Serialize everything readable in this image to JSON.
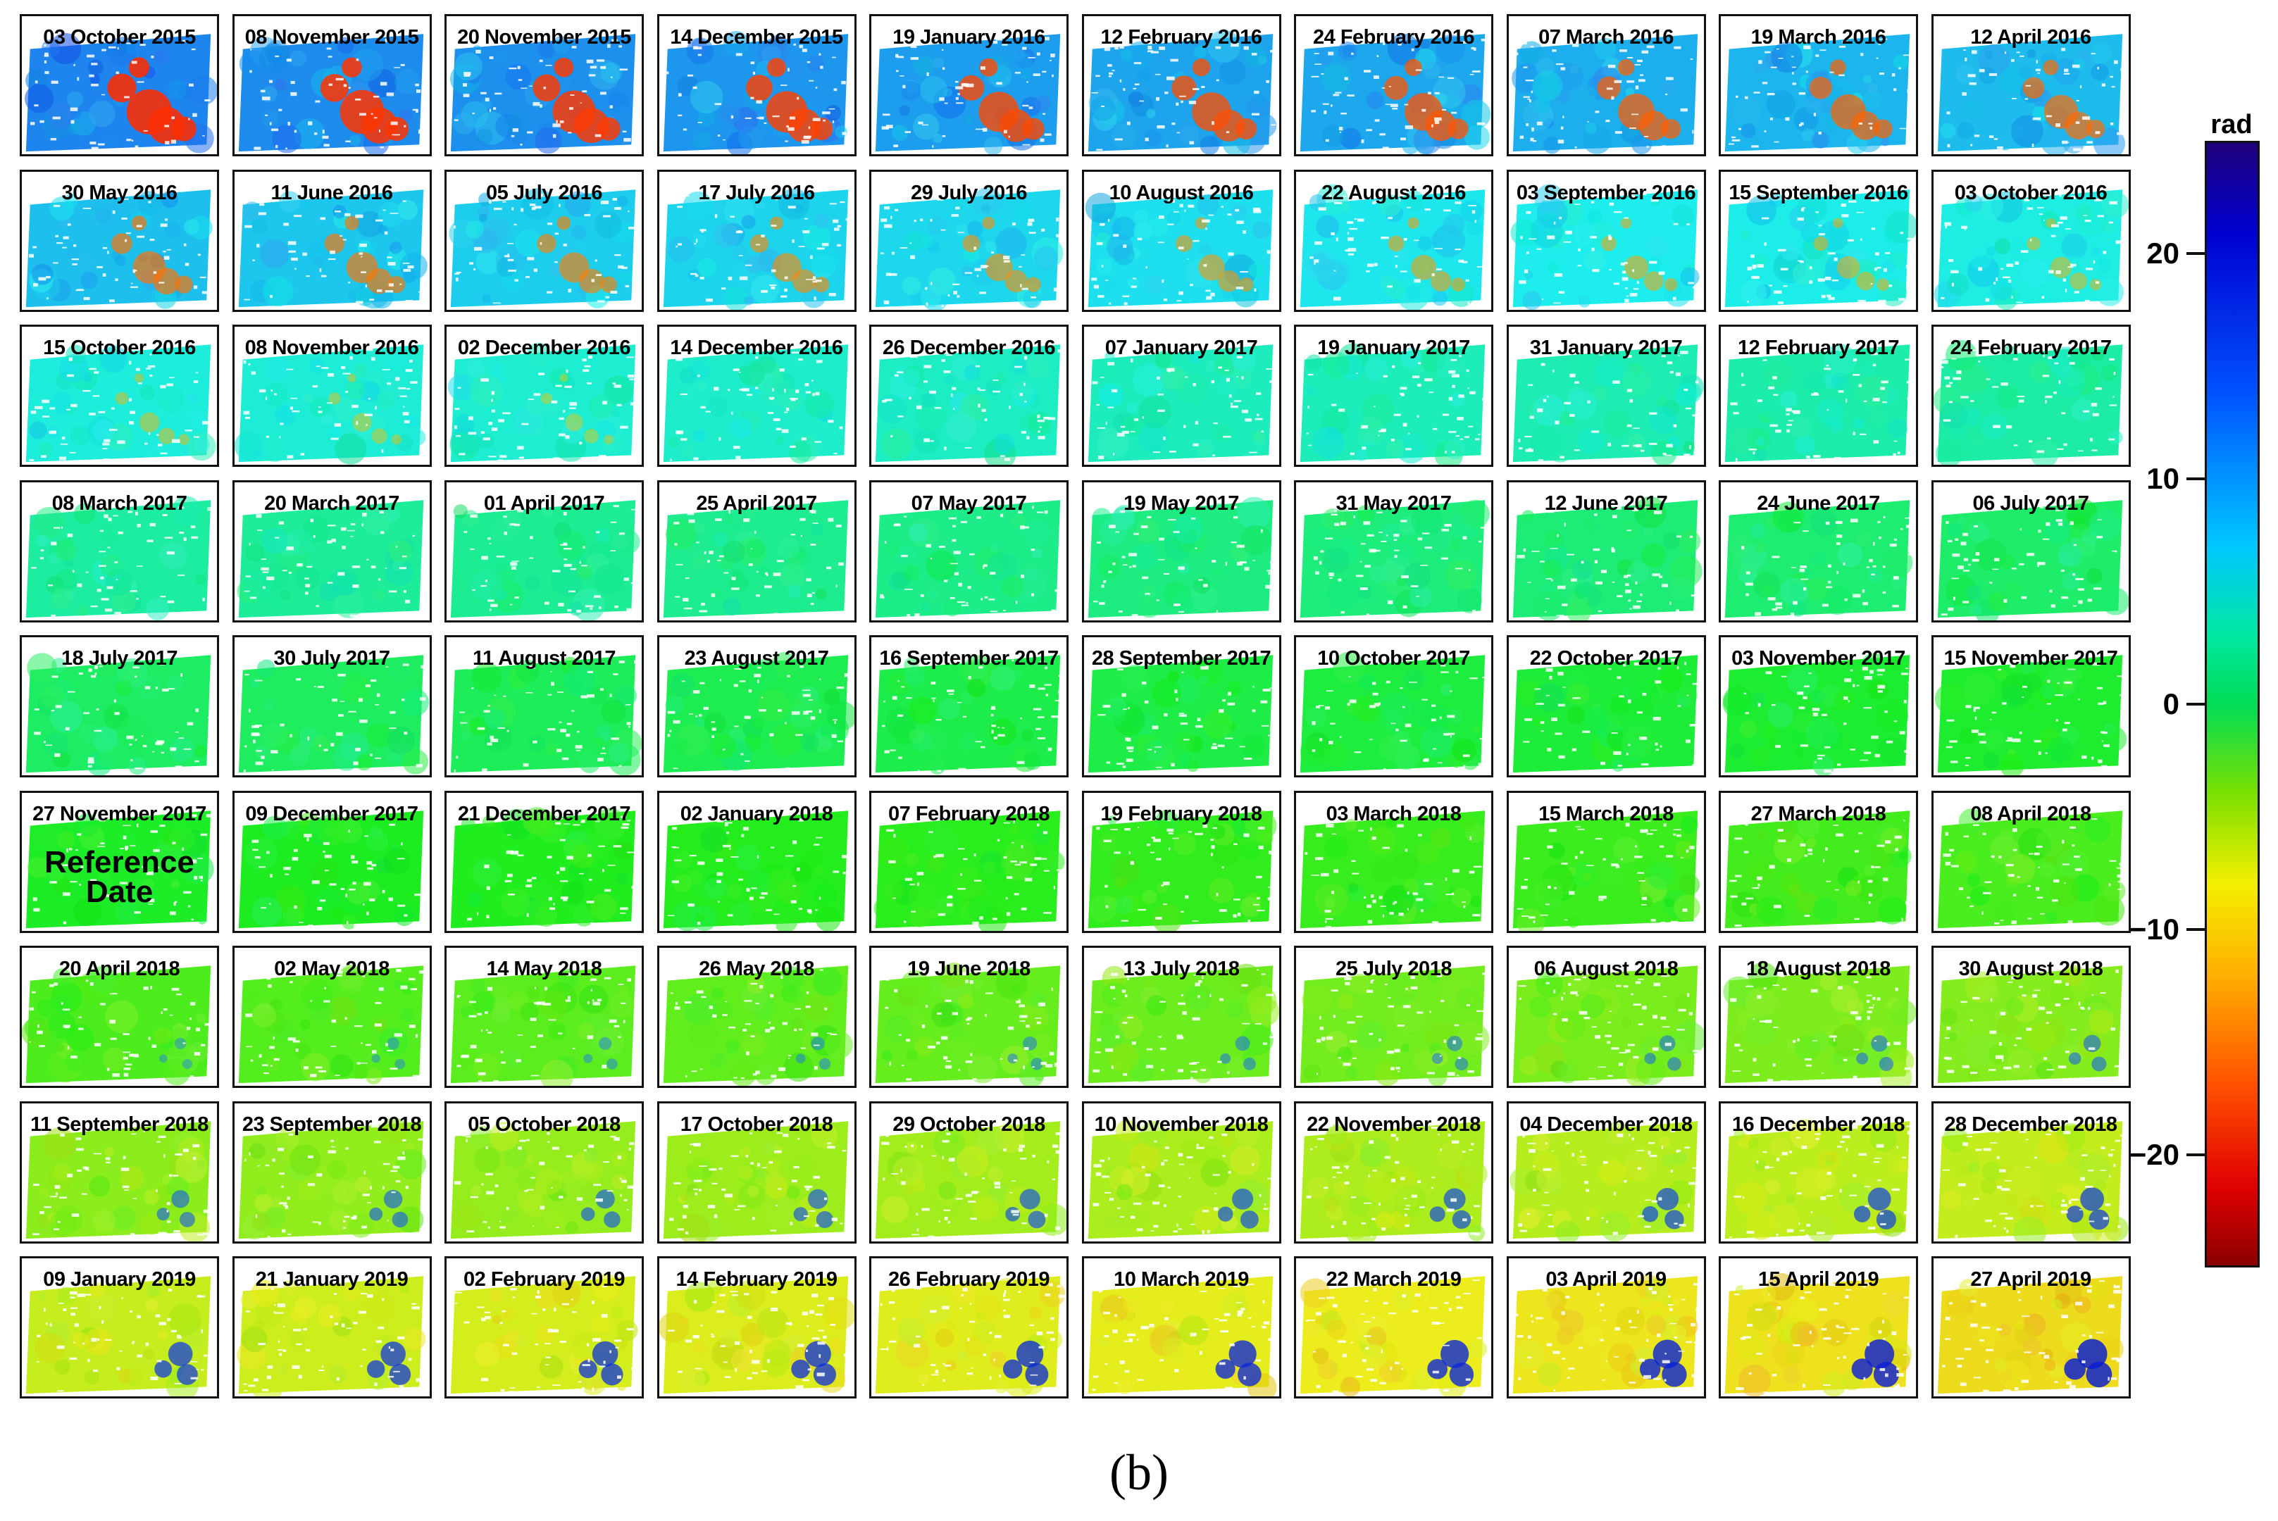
{
  "panels": [
    {
      "date": "03 October 2015"
    },
    {
      "date": "08 November 2015"
    },
    {
      "date": "20 November 2015"
    },
    {
      "date": "14 December 2015"
    },
    {
      "date": "19 January 2016"
    },
    {
      "date": "12 February 2016"
    },
    {
      "date": "24 February 2016"
    },
    {
      "date": "07 March 2016"
    },
    {
      "date": "19 March 2016"
    },
    {
      "date": "12 April 2016"
    },
    {
      "date": "30 May 2016"
    },
    {
      "date": "11 June 2016"
    },
    {
      "date": "05 July 2016"
    },
    {
      "date": "17 July 2016"
    },
    {
      "date": "29 July 2016"
    },
    {
      "date": "10 August 2016"
    },
    {
      "date": "22 August 2016"
    },
    {
      "date": "03 September 2016"
    },
    {
      "date": "15 September 2016"
    },
    {
      "date": "03 October 2016"
    },
    {
      "date": "15 October 2016"
    },
    {
      "date": "08 November 2016"
    },
    {
      "date": "02 December 2016"
    },
    {
      "date": "14 December 2016"
    },
    {
      "date": "26 December 2016"
    },
    {
      "date": "07 January 2017"
    },
    {
      "date": "19 January 2017"
    },
    {
      "date": "31 January 2017"
    },
    {
      "date": "12 February 2017"
    },
    {
      "date": "24 February 2017"
    },
    {
      "date": "08 March 2017"
    },
    {
      "date": "20 March 2017"
    },
    {
      "date": "01 April 2017"
    },
    {
      "date": "25 April 2017"
    },
    {
      "date": "07 May 2017"
    },
    {
      "date": "19 May 2017"
    },
    {
      "date": "31 May 2017"
    },
    {
      "date": "12 June 2017"
    },
    {
      "date": "24 June 2017"
    },
    {
      "date": "06 July 2017"
    },
    {
      "date": "18 July 2017"
    },
    {
      "date": "30 July 2017"
    },
    {
      "date": "11 August 2017"
    },
    {
      "date": "23 August 2017"
    },
    {
      "date": "16 September 2017"
    },
    {
      "date": "28 September 2017"
    },
    {
      "date": "10 October 2017"
    },
    {
      "date": "22 October 2017"
    },
    {
      "date": "03 November 2017"
    },
    {
      "date": "15 November 2017"
    },
    {
      "date": "27 November 2017",
      "reference_label": "Reference Date"
    },
    {
      "date": "09 December 2017"
    },
    {
      "date": "21 December 2017"
    },
    {
      "date": "02 January 2018"
    },
    {
      "date": "07 February 2018"
    },
    {
      "date": "19 February 2018"
    },
    {
      "date": "03 March 2018"
    },
    {
      "date": "15 March 2018"
    },
    {
      "date": "27 March 2018"
    },
    {
      "date": "08 April 2018"
    },
    {
      "date": "20 April 2018"
    },
    {
      "date": "02 May 2018"
    },
    {
      "date": "14 May 2018"
    },
    {
      "date": "26 May 2018"
    },
    {
      "date": "19 June 2018"
    },
    {
      "date": "13 July 2018"
    },
    {
      "date": "25 July 2018"
    },
    {
      "date": "06 August 2018"
    },
    {
      "date": "18 August 2018"
    },
    {
      "date": "30 August 2018"
    },
    {
      "date": "11 September 2018"
    },
    {
      "date": "23 September 2018"
    },
    {
      "date": "05 October 2018"
    },
    {
      "date": "17 October 2018"
    },
    {
      "date": "29 October 2018"
    },
    {
      "date": "10 November 2018"
    },
    {
      "date": "22 November 2018"
    },
    {
      "date": "04 December 2018"
    },
    {
      "date": "16 December 2018"
    },
    {
      "date": "28 December 2018"
    },
    {
      "date": "09 January 2019"
    },
    {
      "date": "21 January 2019"
    },
    {
      "date": "02 February 2019"
    },
    {
      "date": "14 February 2019"
    },
    {
      "date": "26 February 2019"
    },
    {
      "date": "10 March 2019"
    },
    {
      "date": "22 March 2019"
    },
    {
      "date": "03 April 2019"
    },
    {
      "date": "15 April 2019"
    },
    {
      "date": "27 April 2019"
    }
  ],
  "colorbar": {
    "unit": "rad",
    "range": [
      -25,
      25
    ],
    "ticks": [
      {
        "value": 20,
        "label": "20"
      },
      {
        "value": 10,
        "label": "10"
      },
      {
        "value": 0,
        "label": "0"
      },
      {
        "value": -10,
        "label": "−10"
      },
      {
        "value": -20,
        "label": "−20"
      }
    ]
  },
  "caption": "(b)"
}
